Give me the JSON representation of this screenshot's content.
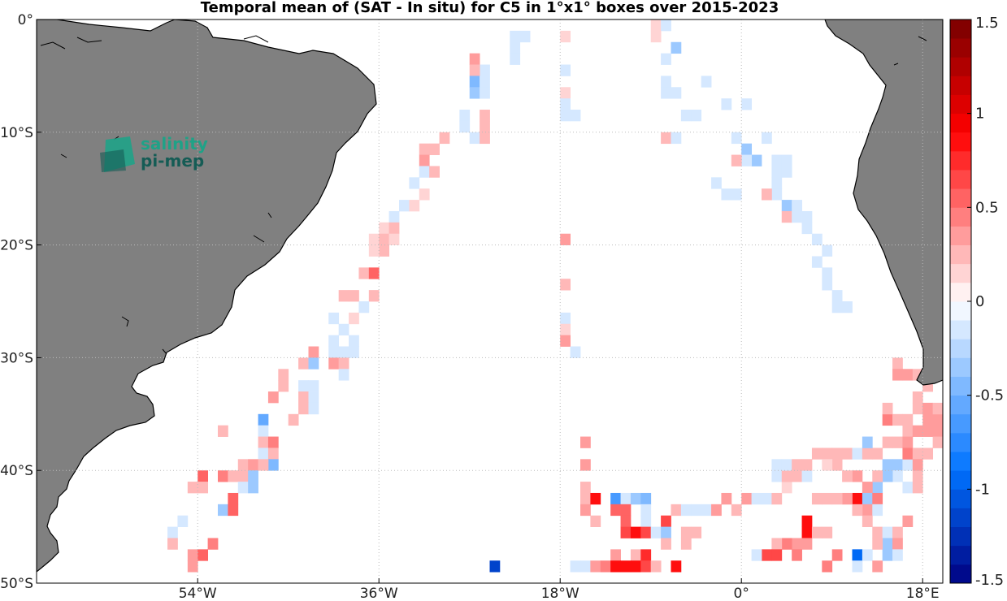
{
  "title": "Temporal mean of (SAT - In situ) for C5 in 1°x1° boxes over 2015-2023",
  "logo": {
    "line1": "salinity",
    "line2": "pi-mep"
  },
  "colors": {
    "land": "#808080",
    "coast": "#000000",
    "grid": "#bbbbbb",
    "logo_1": "#1fa287",
    "logo_2": "#155c55"
  },
  "chart_data": {
    "type": "heatmap",
    "title": "Temporal mean of (SAT - In situ) for C5 in 1°x1° boxes over 2015-2023",
    "projection": "equirectangular",
    "lon_range": [
      -70,
      20
    ],
    "lat_range": [
      -50,
      0
    ],
    "lon_ticks": [
      {
        "value": -54,
        "label": "54°W"
      },
      {
        "value": -36,
        "label": "36°W"
      },
      {
        "value": -18,
        "label": "18°W"
      },
      {
        "value": 0,
        "label": "0°"
      },
      {
        "value": 18,
        "label": "18°E"
      }
    ],
    "lat_ticks": [
      {
        "value": 0,
        "label": "0°"
      },
      {
        "value": -10,
        "label": "10°S"
      },
      {
        "value": -20,
        "label": "20°S"
      },
      {
        "value": -30,
        "label": "30°S"
      },
      {
        "value": -40,
        "label": "40°S"
      },
      {
        "value": -50,
        "label": "50°S"
      }
    ],
    "grid": true,
    "colorbar": {
      "range": [
        -1.5,
        1.5
      ],
      "steps": 30,
      "ticks": [
        {
          "value": 1.5,
          "label": "1.5"
        },
        {
          "value": 1,
          "label": "1"
        },
        {
          "value": 0.5,
          "label": "0.5"
        },
        {
          "value": 0,
          "label": "0"
        },
        {
          "value": -0.5,
          "label": "-0.5"
        },
        {
          "value": -1,
          "label": "-1"
        },
        {
          "value": -1.5,
          "label": "-1.5"
        }
      ]
    },
    "cells": [
      [
        -23,
        -1,
        -0.1
      ],
      [
        -22,
        -1,
        -0.1
      ],
      [
        -23,
        -2,
        -0.1
      ],
      [
        -23,
        -3,
        -0.2
      ],
      [
        -18,
        -1,
        0.1
      ],
      [
        -9,
        0,
        0.1
      ],
      [
        -8,
        0,
        -0.1
      ],
      [
        -9,
        -1,
        0.1
      ],
      [
        -7,
        -2,
        -0.4
      ],
      [
        -8,
        -3,
        -0.1
      ],
      [
        -27,
        -3,
        0.3
      ],
      [
        -26,
        -4,
        -0.1
      ],
      [
        -27,
        -4,
        0.2
      ],
      [
        -27,
        -5,
        -0.5
      ],
      [
        -26,
        -5,
        -0.1
      ],
      [
        -27,
        -6,
        -0.3
      ],
      [
        -26,
        -6,
        -0.1
      ],
      [
        -18,
        -4,
        -0.1
      ],
      [
        -18,
        -6,
        0.1
      ],
      [
        -18,
        -7,
        -0.1
      ],
      [
        -18,
        -8,
        -0.1
      ],
      [
        -17,
        -8,
        -0.1
      ],
      [
        -28,
        -8,
        -0.1
      ],
      [
        -26,
        -8,
        0.2
      ],
      [
        -28,
        -9,
        -0.1
      ],
      [
        -26,
        -9,
        0.2
      ],
      [
        -27,
        -10,
        -0.1
      ],
      [
        -26,
        -10,
        0.2
      ],
      [
        -30,
        -10,
        0.2
      ],
      [
        -31,
        -11,
        0.2
      ],
      [
        -32,
        -11,
        0.2
      ],
      [
        -32,
        -12,
        0.3
      ],
      [
        -32,
        -13,
        -0.1
      ],
      [
        -31,
        -13,
        0.2
      ],
      [
        -33,
        -14,
        -0.1
      ],
      [
        -32,
        -15,
        0.1
      ],
      [
        -34,
        -16,
        -0.1
      ],
      [
        -33,
        -16,
        0.1
      ],
      [
        -8,
        -5,
        -0.1
      ],
      [
        -8,
        -6,
        -0.2
      ],
      [
        -7,
        -6,
        -0.1
      ],
      [
        -6,
        -8,
        -0.1
      ],
      [
        -5,
        -8,
        -0.1
      ],
      [
        -4,
        -5,
        -0.1
      ],
      [
        -2,
        -7,
        -0.1
      ],
      [
        0,
        -7,
        -0.1
      ],
      [
        -8,
        -10,
        0.2
      ],
      [
        -7,
        -10,
        -0.1
      ],
      [
        -3,
        -14,
        -0.1
      ],
      [
        -2,
        -15,
        -0.1
      ],
      [
        -1,
        -15,
        -0.1
      ],
      [
        -1,
        -10,
        -0.1
      ],
      [
        2,
        -10,
        -0.1
      ],
      [
        0,
        -11,
        -0.4
      ],
      [
        1,
        -12,
        -0.4
      ],
      [
        0,
        -12,
        -0.1
      ],
      [
        -1,
        -12,
        0.2
      ],
      [
        3,
        -12,
        -0.2
      ],
      [
        4,
        -12,
        -0.2
      ],
      [
        3,
        -13,
        -0.2
      ],
      [
        4,
        -13,
        -0.1
      ],
      [
        3,
        -14,
        -0.2
      ],
      [
        3,
        -15,
        -0.1
      ],
      [
        2,
        -15,
        0.2
      ],
      [
        4,
        -16,
        -0.3
      ],
      [
        5,
        -16,
        -0.1
      ],
      [
        4,
        -17,
        0.2
      ],
      [
        5,
        -17,
        -0.1
      ],
      [
        6,
        -17,
        -0.1
      ],
      [
        6,
        -18,
        -0.1
      ],
      [
        7,
        -19,
        -0.1
      ],
      [
        8,
        -20,
        -0.1
      ],
      [
        7,
        -21,
        -0.1
      ],
      [
        8,
        -22,
        -0.1
      ],
      [
        8,
        -23,
        -0.1
      ],
      [
        9,
        -24,
        -0.1
      ],
      [
        9,
        -25,
        -0.1
      ],
      [
        10,
        -25,
        -0.1
      ],
      [
        -18,
        -19,
        0.3
      ],
      [
        -18,
        -23,
        0.2
      ],
      [
        -18,
        -26,
        -0.1
      ],
      [
        -18,
        -27,
        0.1
      ],
      [
        -18,
        -28,
        0.3
      ],
      [
        -17,
        -29,
        -0.1
      ],
      [
        -35,
        -17,
        -0.1
      ],
      [
        -36,
        -18,
        0.1
      ],
      [
        -35,
        -18,
        0.2
      ],
      [
        -37,
        -19,
        0.1
      ],
      [
        -36,
        -19,
        0.2
      ],
      [
        -35,
        -19,
        0.1
      ],
      [
        -36,
        -20,
        0.2
      ],
      [
        -37,
        -20,
        0.1
      ],
      [
        -38,
        -22,
        0.2
      ],
      [
        -37,
        -22,
        0.5
      ],
      [
        -40,
        -24,
        0.2
      ],
      [
        -39,
        -24,
        0.2
      ],
      [
        -37,
        -24,
        0.2
      ],
      [
        -38,
        -25,
        -0.1
      ],
      [
        -41,
        -26,
        -0.1
      ],
      [
        -39,
        -26,
        0.1
      ],
      [
        -40,
        -27,
        -0.1
      ],
      [
        -39,
        -28,
        -0.1
      ],
      [
        -41,
        -28,
        -0.1
      ],
      [
        -41,
        -29,
        -0.1
      ],
      [
        -40,
        -29,
        -0.1
      ],
      [
        -39,
        -29,
        -0.1
      ],
      [
        -43,
        -29,
        0.3
      ],
      [
        -44,
        -30,
        0.2
      ],
      [
        -43,
        -30,
        -0.3
      ],
      [
        -41,
        -30,
        0.3
      ],
      [
        -40,
        -30,
        0.2
      ],
      [
        -40,
        -31,
        -0.1
      ],
      [
        -46,
        -31,
        0.2
      ],
      [
        -46,
        -32,
        0.2
      ],
      [
        -44,
        -32,
        -0.1
      ],
      [
        -43,
        -32,
        -0.1
      ],
      [
        -47,
        -33,
        0.3
      ],
      [
        -44,
        -33,
        0.2
      ],
      [
        -43,
        -33,
        -0.2
      ],
      [
        -44,
        -34,
        0.2
      ],
      [
        -43,
        -34,
        -0.1
      ],
      [
        -45,
        -35,
        0.2
      ],
      [
        -48,
        -35,
        -0.6
      ],
      [
        -48,
        -36,
        -0.1
      ],
      [
        -48,
        -37,
        0.2
      ],
      [
        -47,
        -37,
        0.4
      ],
      [
        -48,
        -38,
        -0.2
      ],
      [
        -47,
        -38,
        0.2
      ],
      [
        -47,
        -39,
        -0.5
      ],
      [
        -52,
        -36,
        0.2
      ],
      [
        -50,
        -39,
        0.2
      ],
      [
        -49,
        -39,
        0.3
      ],
      [
        -48,
        -39,
        0.2
      ],
      [
        -54,
        -40,
        0.5
      ],
      [
        -52,
        -40,
        0.4
      ],
      [
        -51,
        -40,
        0.2
      ],
      [
        -50,
        -40,
        0.2
      ],
      [
        -49,
        -40,
        -0.4
      ],
      [
        -55,
        -41,
        0.2
      ],
      [
        -54,
        -41,
        0.2
      ],
      [
        -50,
        -41,
        -0.2
      ],
      [
        -49,
        -41,
        -0.4
      ],
      [
        -51,
        -42,
        0.5
      ],
      [
        -52,
        -43,
        -0.3
      ],
      [
        -51,
        -43,
        0.5
      ],
      [
        -56,
        -44,
        -0.1
      ],
      [
        -57,
        -45,
        -0.1
      ],
      [
        -57,
        -46,
        0.2
      ],
      [
        -53,
        -46,
        0.4
      ],
      [
        -55,
        -47,
        0.3
      ],
      [
        -54,
        -47,
        0.5
      ],
      [
        -55,
        -48,
        0.3
      ],
      [
        -16,
        -37,
        0.3
      ],
      [
        -16,
        -39,
        0.3
      ],
      [
        -16,
        -41,
        0.2
      ],
      [
        -16,
        -42,
        0.2
      ],
      [
        -16,
        -43,
        0.3
      ],
      [
        -15,
        -42,
        0.8
      ],
      [
        -15,
        -44,
        0.2
      ],
      [
        -13,
        -42,
        -0.7
      ],
      [
        -12,
        -42,
        -0.2
      ],
      [
        -11,
        -42,
        -0.4
      ],
      [
        -10,
        -42,
        -0.5
      ],
      [
        -13,
        -43,
        0.5
      ],
      [
        -12,
        -43,
        0.5
      ],
      [
        -10,
        -43,
        -0.1
      ],
      [
        -12,
        -44,
        0.5
      ],
      [
        -10,
        -44,
        -0.2
      ],
      [
        -8,
        -44,
        0.6
      ],
      [
        -12,
        -45,
        0.6
      ],
      [
        -11,
        -45,
        0.9
      ],
      [
        -10,
        -45,
        0.6
      ],
      [
        -9,
        -45,
        -0.1
      ],
      [
        -8,
        -45,
        -0.3
      ],
      [
        -6,
        -45,
        0.2
      ],
      [
        -5,
        -45,
        0.2
      ],
      [
        -8,
        -46,
        0.2
      ],
      [
        -6,
        -46,
        0.2
      ],
      [
        -13,
        -47,
        0.3
      ],
      [
        -11,
        -47,
        0.2
      ],
      [
        -10,
        -47,
        0.7
      ],
      [
        -7,
        -48,
        0.8
      ],
      [
        -16,
        -48,
        -0.1
      ],
      [
        -15,
        -48,
        0.3
      ],
      [
        -14,
        -48,
        0.4
      ],
      [
        -13,
        -48,
        0.9
      ],
      [
        -12,
        -48,
        0.9
      ],
      [
        -11,
        -48,
        0.9
      ],
      [
        -10,
        -48,
        0.6
      ],
      [
        -9,
        -48,
        0.2
      ],
      [
        -17,
        -48,
        -0.1
      ],
      [
        -25,
        -48,
        -1.1
      ],
      [
        -7,
        -43,
        0.2
      ],
      [
        -6,
        -43,
        -0.1
      ],
      [
        -5,
        -43,
        -0.1
      ],
      [
        -4,
        -43,
        -0.2
      ],
      [
        -3,
        -43,
        0.3
      ],
      [
        -2,
        -42,
        0.3
      ],
      [
        -1,
        -43,
        0.2
      ],
      [
        0,
        -42,
        0.3
      ],
      [
        1,
        -42,
        -0.2
      ],
      [
        2,
        -42,
        -0.2
      ],
      [
        3,
        -42,
        0.2
      ],
      [
        4,
        -41,
        0.1
      ],
      [
        3,
        -40,
        -0.1
      ],
      [
        4,
        -40,
        0.2
      ],
      [
        5,
        -40,
        0.2
      ],
      [
        6,
        -40,
        -0.1
      ],
      [
        3,
        -39,
        -0.2
      ],
      [
        4,
        -39,
        -0.1
      ],
      [
        5,
        -39,
        0.2
      ],
      [
        6,
        -39,
        0.2
      ],
      [
        7,
        -38,
        0.2
      ],
      [
        8,
        -38,
        0.2
      ],
      [
        9,
        -38,
        0.2
      ],
      [
        10,
        -38,
        0.2
      ],
      [
        11,
        -38,
        -0.2
      ],
      [
        12,
        -38,
        0.2
      ],
      [
        13,
        -38,
        0.2
      ],
      [
        14,
        -39,
        -0.3
      ],
      [
        15,
        -39,
        -0.3
      ],
      [
        16,
        -39,
        -0.1
      ],
      [
        17,
        -40,
        0.2
      ],
      [
        15,
        -40,
        -0.2
      ],
      [
        14,
        -40,
        -0.3
      ],
      [
        13,
        -41,
        -0.3
      ],
      [
        12,
        -41,
        0.3
      ],
      [
        11,
        -40,
        0.3
      ],
      [
        10,
        -40,
        0.2
      ],
      [
        9,
        -39,
        0.2
      ],
      [
        8,
        -39,
        0.1
      ],
      [
        11,
        -42,
        0.9
      ],
      [
        10,
        -42,
        0.3
      ],
      [
        9,
        -42,
        0.2
      ],
      [
        8,
        -42,
        0.2
      ],
      [
        7,
        -42,
        0.2
      ],
      [
        12,
        -42,
        -0.3
      ],
      [
        13,
        -42,
        0.4
      ],
      [
        12,
        -43,
        0.3
      ],
      [
        11,
        -43,
        0.2
      ],
      [
        13,
        -43,
        -0.2
      ],
      [
        12,
        -44,
        0.2
      ],
      [
        6,
        -44,
        0.8
      ],
      [
        6,
        -45,
        0.8
      ],
      [
        7,
        -45,
        0.2
      ],
      [
        8,
        -45,
        0.2
      ],
      [
        6,
        -46,
        0.3
      ],
      [
        5,
        -46,
        0.3
      ],
      [
        4,
        -46,
        0.4
      ],
      [
        3,
        -46,
        0.2
      ],
      [
        13,
        -45,
        0.2
      ],
      [
        14,
        -45,
        -0.2
      ],
      [
        15,
        -45,
        0.2
      ],
      [
        16,
        -44,
        0.3
      ],
      [
        3,
        -47,
        0.6
      ],
      [
        2,
        -47,
        0.6
      ],
      [
        1,
        -47,
        -0.1
      ],
      [
        5,
        -47,
        0.4
      ],
      [
        8,
        -48,
        0.4
      ],
      [
        9,
        -47,
        0.4
      ],
      [
        11,
        -47,
        -1.0
      ],
      [
        12,
        -47,
        -0.1
      ],
      [
        11,
        -48,
        -0.2
      ],
      [
        13,
        -48,
        0.3
      ],
      [
        14,
        -46,
        -0.3
      ],
      [
        13,
        -46,
        0.2
      ],
      [
        15,
        -46,
        0.3
      ],
      [
        14,
        -47,
        -0.3
      ],
      [
        15,
        -47,
        -0.1
      ],
      [
        13,
        -40,
        0.2
      ],
      [
        16,
        -41,
        -0.1
      ],
      [
        17,
        -41,
        0.2
      ],
      [
        12,
        -37,
        -0.4
      ],
      [
        14,
        -37,
        0.2
      ],
      [
        15,
        -37,
        0.2
      ],
      [
        16,
        -36,
        0.2
      ],
      [
        17,
        -36,
        0.3
      ],
      [
        18,
        -36,
        0.3
      ],
      [
        19,
        -36,
        0.3
      ],
      [
        18,
        -35,
        0.3
      ],
      [
        19,
        -35,
        0.3
      ],
      [
        17,
        -34,
        0.2
      ],
      [
        18,
        -34,
        0.3
      ],
      [
        19,
        -34,
        0.2
      ],
      [
        17,
        -33,
        0.2
      ],
      [
        15,
        -30,
        0.2
      ],
      [
        15,
        -31,
        0.3
      ],
      [
        16,
        -31,
        0.3
      ],
      [
        17,
        -31,
        0.2
      ],
      [
        18,
        -32,
        0.2
      ],
      [
        14,
        -35,
        0.4
      ],
      [
        15,
        -35,
        0.2
      ],
      [
        14,
        -34,
        0.2
      ],
      [
        16,
        -35,
        0.2
      ],
      [
        16,
        -37,
        0.3
      ],
      [
        16,
        -38,
        0.4
      ],
      [
        17,
        -38,
        0.2
      ],
      [
        18,
        -38,
        0.2
      ],
      [
        19,
        -37,
        0.2
      ],
      [
        17,
        -39,
        0.3
      ]
    ]
  }
}
